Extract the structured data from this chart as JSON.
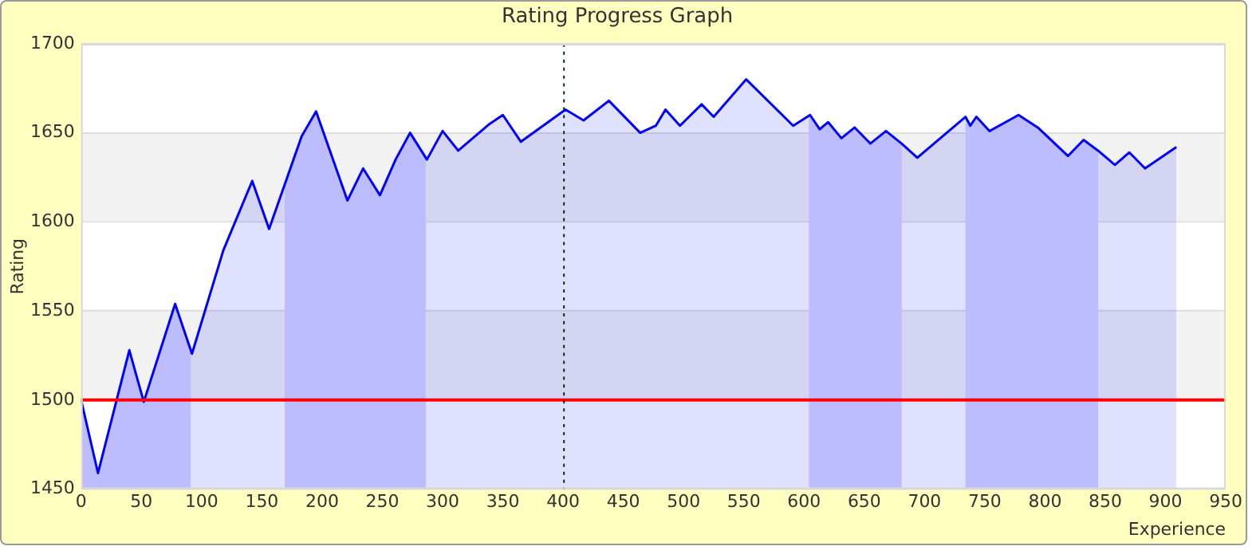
{
  "chart_data": {
    "type": "area",
    "title": "Rating Progress Graph",
    "xlabel": "Experience",
    "ylabel": "Rating",
    "x": [
      0,
      14,
      40,
      52,
      78,
      92,
      118,
      142,
      156,
      183,
      195,
      221,
      234,
      248,
      261,
      273,
      287,
      300,
      313,
      339,
      350,
      365,
      402,
      417,
      438,
      464,
      477,
      485,
      497,
      515,
      525,
      552,
      591,
      605,
      613,
      620,
      631,
      642,
      655,
      668,
      681,
      694,
      734,
      738,
      743,
      754,
      778,
      794,
      819,
      832,
      844,
      858,
      870,
      883,
      909
    ],
    "series": [
      {
        "color": "#0000ff",
        "values": [
          1500,
          1459,
          1528,
          1499,
          1554,
          1526,
          1584,
          1623,
          1596,
          1648,
          1662,
          1612,
          1630,
          1615,
          1635,
          1650,
          1635,
          1651,
          1640,
          1655,
          1660,
          1645,
          1663,
          1657,
          1668,
          1650,
          1654,
          1663,
          1654,
          1666,
          1659,
          1680,
          1654,
          1660,
          1652,
          1656,
          1647,
          1653,
          1644,
          1651,
          1644,
          1636,
          1659,
          1654,
          1659,
          1651,
          1660,
          1653,
          1637,
          1646,
          1640,
          1632,
          1639,
          1630,
          1642
        ]
      }
    ],
    "xlim": [
      0,
      950
    ],
    "ylim": [
      1450,
      1700
    ],
    "xticks": [
      0,
      50,
      100,
      150,
      200,
      250,
      300,
      350,
      400,
      450,
      500,
      550,
      600,
      650,
      700,
      750,
      800,
      850,
      900,
      950
    ],
    "yticks": [
      1450,
      1500,
      1550,
      1600,
      1650,
      1700
    ],
    "grid": "y",
    "legend": false,
    "marker": "none",
    "line_style": "solid",
    "ref_lines": [
      {
        "axis": "y",
        "value": 1500,
        "color": "#ff0000",
        "line_style": "solid"
      },
      {
        "axis": "x",
        "value": 400,
        "color": "#003300",
        "line_style": "dotted"
      }
    ],
    "bands": [
      {
        "axis": "x",
        "from": 0,
        "to": 91,
        "color": "#d6d6ff"
      },
      {
        "axis": "x",
        "from": 169,
        "to": 286,
        "color": "#d6d6ff"
      },
      {
        "axis": "x",
        "from": 604,
        "to": 681,
        "color": "#d6d6ff"
      },
      {
        "axis": "x",
        "from": 734,
        "to": 844,
        "color": "#d6d6ff"
      }
    ]
  }
}
